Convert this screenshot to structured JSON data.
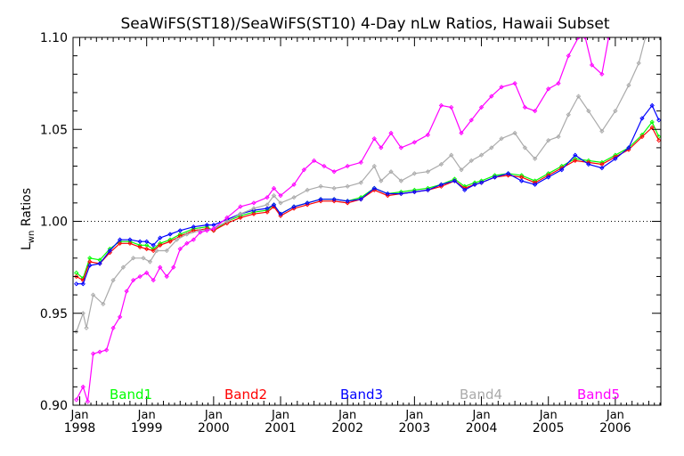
{
  "chart_data": {
    "type": "line",
    "title": "SeaWiFS(ST18)/SeaWiFS(ST10) 4-Day nLw Ratios, Hawaii Subset",
    "ylabel_main": "L",
    "ylabel_sub": "wn",
    "ylabel_tail": " Ratios",
    "ylim": [
      0.9,
      1.1
    ],
    "xlim": [
      1997.9,
      2006.68
    ],
    "yticks": [
      "0.90",
      "0.95",
      "1.00",
      "1.05",
      "1.10"
    ],
    "ytick_values": [
      0.9,
      0.95,
      1.0,
      1.05,
      1.1
    ],
    "xticks": [
      {
        "month": "Jan",
        "year": "1998",
        "x": 1998.0
      },
      {
        "month": "Jan",
        "year": "1999",
        "x": 1999.0
      },
      {
        "month": "Jan",
        "year": "2000",
        "x": 2000.0
      },
      {
        "month": "Jan",
        "year": "2001",
        "x": 2001.0
      },
      {
        "month": "Jan",
        "year": "2002",
        "x": 2002.0
      },
      {
        "month": "Jan",
        "year": "2003",
        "x": 2003.0
      },
      {
        "month": "Jan",
        "year": "2004",
        "x": 2004.0
      },
      {
        "month": "Jan",
        "year": "2005",
        "x": 2005.0
      },
      {
        "month": "Jan",
        "year": "2006",
        "x": 2006.0
      }
    ],
    "reference_line": 1.0,
    "grid": false,
    "legend_position": "bottom, inside plot",
    "series": [
      {
        "name": "Band1",
        "color": "#00ff00",
        "points": [
          [
            1997.95,
            0.972
          ],
          [
            1998.05,
            0.969
          ],
          [
            1998.15,
            0.98
          ],
          [
            1998.3,
            0.979
          ],
          [
            1998.45,
            0.985
          ],
          [
            1998.6,
            0.989
          ],
          [
            1998.75,
            0.989
          ],
          [
            1998.9,
            0.987
          ],
          [
            1999.0,
            0.987
          ],
          [
            1999.1,
            0.985
          ],
          [
            1999.2,
            0.988
          ],
          [
            1999.35,
            0.99
          ],
          [
            1999.5,
            0.993
          ],
          [
            1999.7,
            0.996
          ],
          [
            1999.9,
            0.997
          ],
          [
            2000.0,
            0.995
          ],
          [
            2000.2,
            1.0
          ],
          [
            2000.4,
            1.003
          ],
          [
            2000.6,
            1.005
          ],
          [
            2000.8,
            1.006
          ],
          [
            2000.9,
            1.009
          ],
          [
            2001.0,
            1.004
          ],
          [
            2001.2,
            1.008
          ],
          [
            2001.4,
            1.01
          ],
          [
            2001.6,
            1.012
          ],
          [
            2001.8,
            1.012
          ],
          [
            2002.0,
            1.011
          ],
          [
            2002.2,
            1.013
          ],
          [
            2002.4,
            1.018
          ],
          [
            2002.6,
            1.015
          ],
          [
            2002.8,
            1.016
          ],
          [
            2003.0,
            1.017
          ],
          [
            2003.2,
            1.018
          ],
          [
            2003.4,
            1.02
          ],
          [
            2003.6,
            1.023
          ],
          [
            2003.75,
            1.019
          ],
          [
            2003.9,
            1.021
          ],
          [
            2004.0,
            1.022
          ],
          [
            2004.2,
            1.025
          ],
          [
            2004.4,
            1.026
          ],
          [
            2004.6,
            1.025
          ],
          [
            2004.8,
            1.022
          ],
          [
            2005.0,
            1.026
          ],
          [
            2005.2,
            1.03
          ],
          [
            2005.4,
            1.034
          ],
          [
            2005.6,
            1.033
          ],
          [
            2005.8,
            1.032
          ],
          [
            2006.0,
            1.036
          ],
          [
            2006.2,
            1.04
          ],
          [
            2006.4,
            1.047
          ],
          [
            2006.55,
            1.054
          ],
          [
            2006.65,
            1.046
          ]
        ]
      },
      {
        "name": "Band2",
        "color": "#ff0000",
        "points": [
          [
            1997.95,
            0.97
          ],
          [
            1998.05,
            0.968
          ],
          [
            1998.15,
            0.978
          ],
          [
            1998.3,
            0.977
          ],
          [
            1998.45,
            0.983
          ],
          [
            1998.6,
            0.988
          ],
          [
            1998.75,
            0.988
          ],
          [
            1998.9,
            0.986
          ],
          [
            1999.0,
            0.985
          ],
          [
            1999.1,
            0.984
          ],
          [
            1999.2,
            0.987
          ],
          [
            1999.35,
            0.989
          ],
          [
            1999.5,
            0.992
          ],
          [
            1999.7,
            0.995
          ],
          [
            1999.9,
            0.996
          ],
          [
            2000.0,
            0.995
          ],
          [
            2000.2,
            0.999
          ],
          [
            2000.4,
            1.002
          ],
          [
            2000.6,
            1.004
          ],
          [
            2000.8,
            1.005
          ],
          [
            2000.9,
            1.008
          ],
          [
            2001.0,
            1.003
          ],
          [
            2001.2,
            1.007
          ],
          [
            2001.4,
            1.009
          ],
          [
            2001.6,
            1.011
          ],
          [
            2001.8,
            1.011
          ],
          [
            2002.0,
            1.01
          ],
          [
            2002.2,
            1.012
          ],
          [
            2002.4,
            1.017
          ],
          [
            2002.6,
            1.014
          ],
          [
            2002.8,
            1.015
          ],
          [
            2003.0,
            1.016
          ],
          [
            2003.2,
            1.017
          ],
          [
            2003.4,
            1.019
          ],
          [
            2003.6,
            1.022
          ],
          [
            2003.75,
            1.018
          ],
          [
            2003.9,
            1.02
          ],
          [
            2004.0,
            1.021
          ],
          [
            2004.2,
            1.024
          ],
          [
            2004.4,
            1.025
          ],
          [
            2004.6,
            1.024
          ],
          [
            2004.8,
            1.021
          ],
          [
            2005.0,
            1.025
          ],
          [
            2005.2,
            1.029
          ],
          [
            2005.4,
            1.033
          ],
          [
            2005.6,
            1.032
          ],
          [
            2005.8,
            1.031
          ],
          [
            2006.0,
            1.035
          ],
          [
            2006.2,
            1.039
          ],
          [
            2006.4,
            1.046
          ],
          [
            2006.55,
            1.051
          ],
          [
            2006.65,
            1.044
          ]
        ]
      },
      {
        "name": "Band3",
        "color": "#0000ff",
        "points": [
          [
            1997.95,
            0.966
          ],
          [
            1998.05,
            0.966
          ],
          [
            1998.15,
            0.976
          ],
          [
            1998.3,
            0.977
          ],
          [
            1998.45,
            0.984
          ],
          [
            1998.6,
            0.99
          ],
          [
            1998.75,
            0.99
          ],
          [
            1998.9,
            0.989
          ],
          [
            1999.0,
            0.989
          ],
          [
            1999.1,
            0.987
          ],
          [
            1999.2,
            0.991
          ],
          [
            1999.35,
            0.993
          ],
          [
            1999.5,
            0.995
          ],
          [
            1999.7,
            0.997
          ],
          [
            1999.9,
            0.998
          ],
          [
            2000.0,
            0.998
          ],
          [
            2000.2,
            1.001
          ],
          [
            2000.4,
            1.004
          ],
          [
            2000.6,
            1.006
          ],
          [
            2000.8,
            1.007
          ],
          [
            2000.9,
            1.009
          ],
          [
            2001.0,
            1.004
          ],
          [
            2001.2,
            1.008
          ],
          [
            2001.4,
            1.01
          ],
          [
            2001.6,
            1.012
          ],
          [
            2001.8,
            1.012
          ],
          [
            2002.0,
            1.011
          ],
          [
            2002.2,
            1.012
          ],
          [
            2002.4,
            1.018
          ],
          [
            2002.6,
            1.015
          ],
          [
            2002.8,
            1.015
          ],
          [
            2003.0,
            1.016
          ],
          [
            2003.2,
            1.017
          ],
          [
            2003.4,
            1.02
          ],
          [
            2003.6,
            1.022
          ],
          [
            2003.75,
            1.017
          ],
          [
            2003.9,
            1.02
          ],
          [
            2004.0,
            1.021
          ],
          [
            2004.2,
            1.024
          ],
          [
            2004.4,
            1.026
          ],
          [
            2004.6,
            1.022
          ],
          [
            2004.8,
            1.02
          ],
          [
            2005.0,
            1.024
          ],
          [
            2005.2,
            1.028
          ],
          [
            2005.4,
            1.036
          ],
          [
            2005.6,
            1.031
          ],
          [
            2005.8,
            1.029
          ],
          [
            2006.0,
            1.034
          ],
          [
            2006.2,
            1.04
          ],
          [
            2006.4,
            1.056
          ],
          [
            2006.55,
            1.063
          ],
          [
            2006.65,
            1.055
          ]
        ]
      },
      {
        "name": "Band4",
        "color": "#aaaaaa",
        "points": [
          [
            1997.95,
            0.94
          ],
          [
            1998.05,
            0.95
          ],
          [
            1998.1,
            0.942
          ],
          [
            1998.2,
            0.96
          ],
          [
            1998.35,
            0.955
          ],
          [
            1998.5,
            0.968
          ],
          [
            1998.65,
            0.975
          ],
          [
            1998.8,
            0.98
          ],
          [
            1998.95,
            0.98
          ],
          [
            1999.05,
            0.978
          ],
          [
            1999.15,
            0.984
          ],
          [
            1999.3,
            0.984
          ],
          [
            1999.45,
            0.99
          ],
          [
            1999.6,
            0.993
          ],
          [
            1999.8,
            0.995
          ],
          [
            2000.0,
            0.996
          ],
          [
            2000.2,
            1.0
          ],
          [
            2000.4,
            1.004
          ],
          [
            2000.6,
            1.007
          ],
          [
            2000.8,
            1.009
          ],
          [
            2000.9,
            1.014
          ],
          [
            2001.0,
            1.01
          ],
          [
            2001.2,
            1.013
          ],
          [
            2001.4,
            1.017
          ],
          [
            2001.6,
            1.019
          ],
          [
            2001.8,
            1.018
          ],
          [
            2002.0,
            1.019
          ],
          [
            2002.2,
            1.021
          ],
          [
            2002.4,
            1.03
          ],
          [
            2002.5,
            1.022
          ],
          [
            2002.65,
            1.027
          ],
          [
            2002.8,
            1.022
          ],
          [
            2003.0,
            1.026
          ],
          [
            2003.2,
            1.027
          ],
          [
            2003.4,
            1.031
          ],
          [
            2003.55,
            1.036
          ],
          [
            2003.7,
            1.028
          ],
          [
            2003.85,
            1.033
          ],
          [
            2004.0,
            1.036
          ],
          [
            2004.15,
            1.04
          ],
          [
            2004.3,
            1.045
          ],
          [
            2004.5,
            1.048
          ],
          [
            2004.65,
            1.04
          ],
          [
            2004.8,
            1.034
          ],
          [
            2005.0,
            1.044
          ],
          [
            2005.15,
            1.046
          ],
          [
            2005.3,
            1.058
          ],
          [
            2005.45,
            1.068
          ],
          [
            2005.6,
            1.06
          ],
          [
            2005.8,
            1.049
          ],
          [
            2006.0,
            1.06
          ],
          [
            2006.2,
            1.074
          ],
          [
            2006.35,
            1.086
          ],
          [
            2006.45,
            1.1
          ]
        ]
      },
      {
        "name": "Band5",
        "color": "#ff00ff",
        "points": [
          [
            1997.95,
            0.903
          ],
          [
            1998.05,
            0.91
          ],
          [
            1998.12,
            0.902
          ],
          [
            1998.2,
            0.928
          ],
          [
            1998.3,
            0.929
          ],
          [
            1998.4,
            0.93
          ],
          [
            1998.5,
            0.942
          ],
          [
            1998.6,
            0.948
          ],
          [
            1998.7,
            0.962
          ],
          [
            1998.8,
            0.968
          ],
          [
            1998.9,
            0.97
          ],
          [
            1999.0,
            0.972
          ],
          [
            1999.1,
            0.968
          ],
          [
            1999.2,
            0.975
          ],
          [
            1999.3,
            0.97
          ],
          [
            1999.4,
            0.975
          ],
          [
            1999.5,
            0.985
          ],
          [
            1999.6,
            0.988
          ],
          [
            1999.7,
            0.99
          ],
          [
            1999.8,
            0.994
          ],
          [
            1999.9,
            0.995
          ],
          [
            2000.0,
            0.996
          ],
          [
            2000.2,
            1.002
          ],
          [
            2000.4,
            1.008
          ],
          [
            2000.6,
            1.01
          ],
          [
            2000.8,
            1.013
          ],
          [
            2000.9,
            1.018
          ],
          [
            2001.0,
            1.014
          ],
          [
            2001.2,
            1.02
          ],
          [
            2001.35,
            1.028
          ],
          [
            2001.5,
            1.033
          ],
          [
            2001.65,
            1.03
          ],
          [
            2001.8,
            1.027
          ],
          [
            2002.0,
            1.03
          ],
          [
            2002.2,
            1.032
          ],
          [
            2002.4,
            1.045
          ],
          [
            2002.5,
            1.04
          ],
          [
            2002.65,
            1.048
          ],
          [
            2002.8,
            1.04
          ],
          [
            2003.0,
            1.043
          ],
          [
            2003.2,
            1.047
          ],
          [
            2003.4,
            1.063
          ],
          [
            2003.55,
            1.062
          ],
          [
            2003.7,
            1.048
          ],
          [
            2003.85,
            1.055
          ],
          [
            2004.0,
            1.062
          ],
          [
            2004.15,
            1.068
          ],
          [
            2004.3,
            1.073
          ],
          [
            2004.5,
            1.075
          ],
          [
            2004.65,
            1.062
          ],
          [
            2004.8,
            1.06
          ],
          [
            2005.0,
            1.072
          ],
          [
            2005.15,
            1.075
          ],
          [
            2005.3,
            1.09
          ],
          [
            2005.45,
            1.1
          ],
          [
            2005.55,
            1.1
          ],
          [
            2005.65,
            1.085
          ],
          [
            2005.8,
            1.08
          ],
          [
            2005.9,
            1.1
          ]
        ]
      }
    ]
  }
}
